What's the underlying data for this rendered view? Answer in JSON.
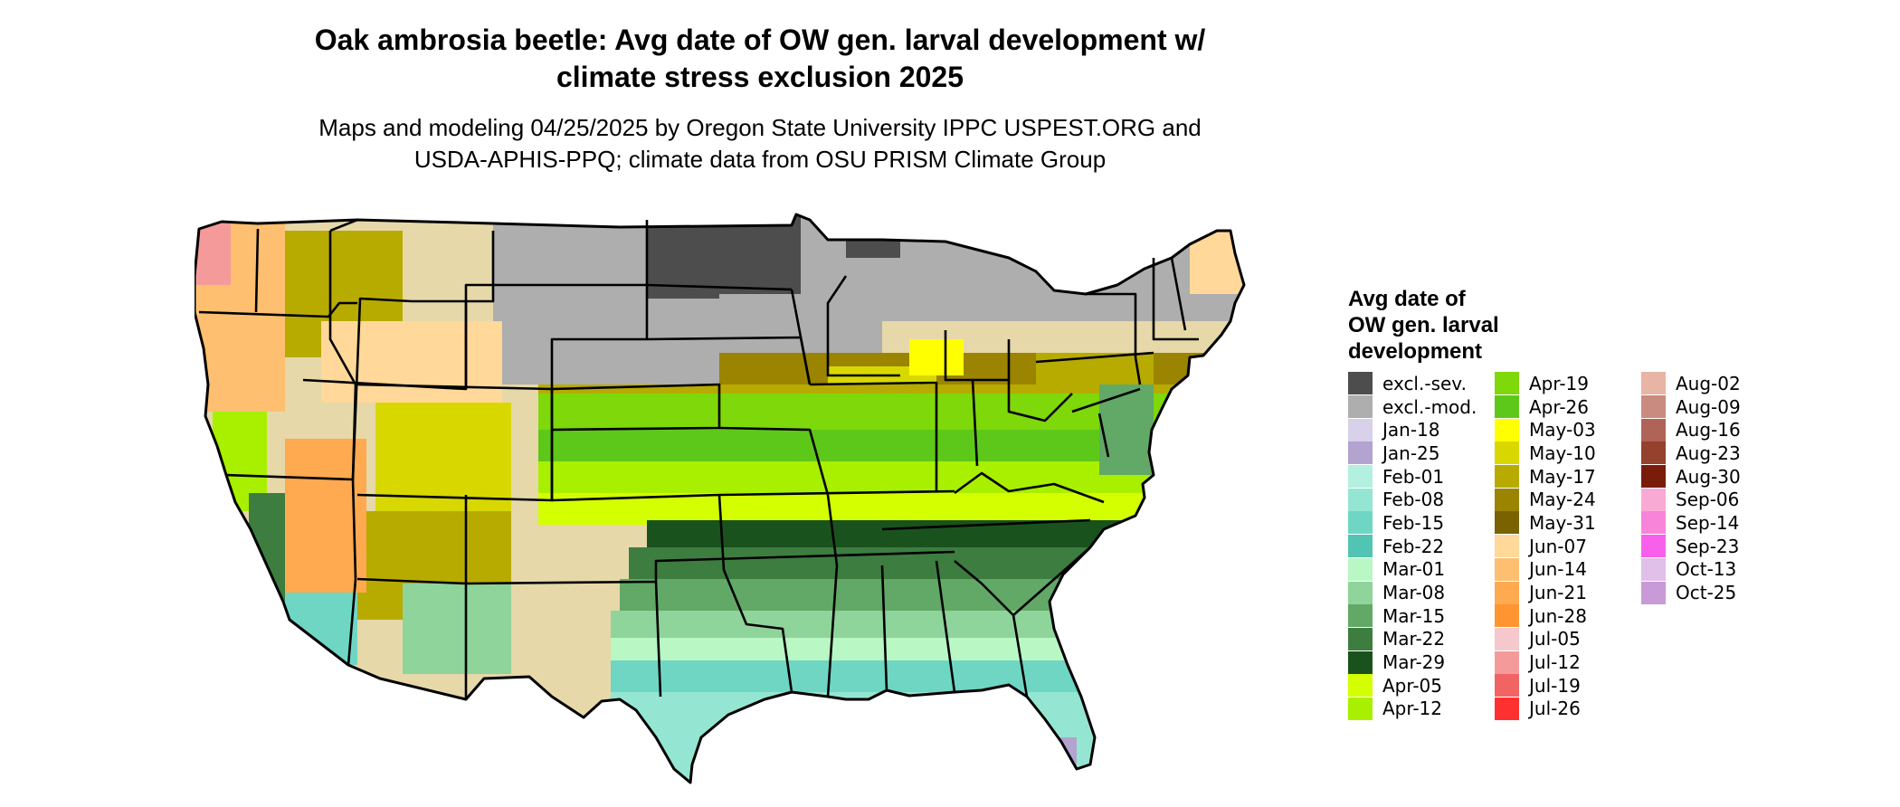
{
  "title_line1": "Oak ambrosia beetle: Avg date of OW gen. larval development w/",
  "title_line2": "climate stress exclusion 2025",
  "subtitle_line1": "Maps and modeling 04/25/2025 by Oregon State University IPPC USPEST.ORG and",
  "subtitle_line2": "USDA-APHIS-PPQ; climate data from OSU PRISM Climate Group",
  "legend": {
    "title_line1": "Avg date of",
    "title_line2": "OW gen. larval",
    "title_line3": "development",
    "columns": [
      [
        {
          "label": "excl.-sev.",
          "color": "#4d4d4d"
        },
        {
          "label": "excl.-mod.",
          "color": "#aeaeae"
        },
        {
          "label": "Jan-18",
          "color": "#d9d0ea"
        },
        {
          "label": "Jan-25",
          "color": "#b3a3cf"
        },
        {
          "label": "Feb-01",
          "color": "#b3f0e0"
        },
        {
          "label": "Feb-08",
          "color": "#94e6d2"
        },
        {
          "label": "Feb-15",
          "color": "#6fd6c4"
        },
        {
          "label": "Feb-22",
          "color": "#52c4b4"
        },
        {
          "label": "Mar-01",
          "color": "#b9f7c4"
        },
        {
          "label": "Mar-08",
          "color": "#8fd49a"
        },
        {
          "label": "Mar-15",
          "color": "#62a867"
        },
        {
          "label": "Mar-22",
          "color": "#3d7d40"
        },
        {
          "label": "Mar-29",
          "color": "#1a521e"
        },
        {
          "label": "Apr-05",
          "color": "#d4ff00"
        },
        {
          "label": "Apr-12",
          "color": "#a8f000"
        }
      ],
      [
        {
          "label": "Apr-19",
          "color": "#7ed80a"
        },
        {
          "label": "Apr-26",
          "color": "#5ec81a"
        },
        {
          "label": "May-03",
          "color": "#ffff00"
        },
        {
          "label": "May-10",
          "color": "#d8d800"
        },
        {
          "label": "May-17",
          "color": "#b8ab00"
        },
        {
          "label": "May-24",
          "color": "#9a8400"
        },
        {
          "label": "May-31",
          "color": "#7a6200"
        },
        {
          "label": "Jun-07",
          "color": "#ffd89a"
        },
        {
          "label": "Jun-14",
          "color": "#ffbf70"
        },
        {
          "label": "Jun-21",
          "color": "#ffa950"
        },
        {
          "label": "Jun-28",
          "color": "#ff9530"
        },
        {
          "label": "Jul-05",
          "color": "#f5c8cc"
        },
        {
          "label": "Jul-12",
          "color": "#f59a9a"
        },
        {
          "label": "Jul-19",
          "color": "#f06464"
        },
        {
          "label": "Jul-26",
          "color": "#ff3030"
        }
      ],
      [
        {
          "label": "Aug-02",
          "color": "#e8b4a6"
        },
        {
          "label": "Aug-09",
          "color": "#c98b80"
        },
        {
          "label": "Aug-16",
          "color": "#b06458"
        },
        {
          "label": "Aug-23",
          "color": "#94412e"
        },
        {
          "label": "Aug-30",
          "color": "#7a1c0a"
        },
        {
          "label": "Sep-06",
          "color": "#f9aad4"
        },
        {
          "label": "Sep-14",
          "color": "#f884da"
        },
        {
          "label": "Sep-23",
          "color": "#f860ec"
        },
        {
          "label": "Oct-13",
          "color": "#e0c0e8"
        },
        {
          "label": "Oct-25",
          "color": "#c89ad8"
        }
      ]
    ]
  }
}
